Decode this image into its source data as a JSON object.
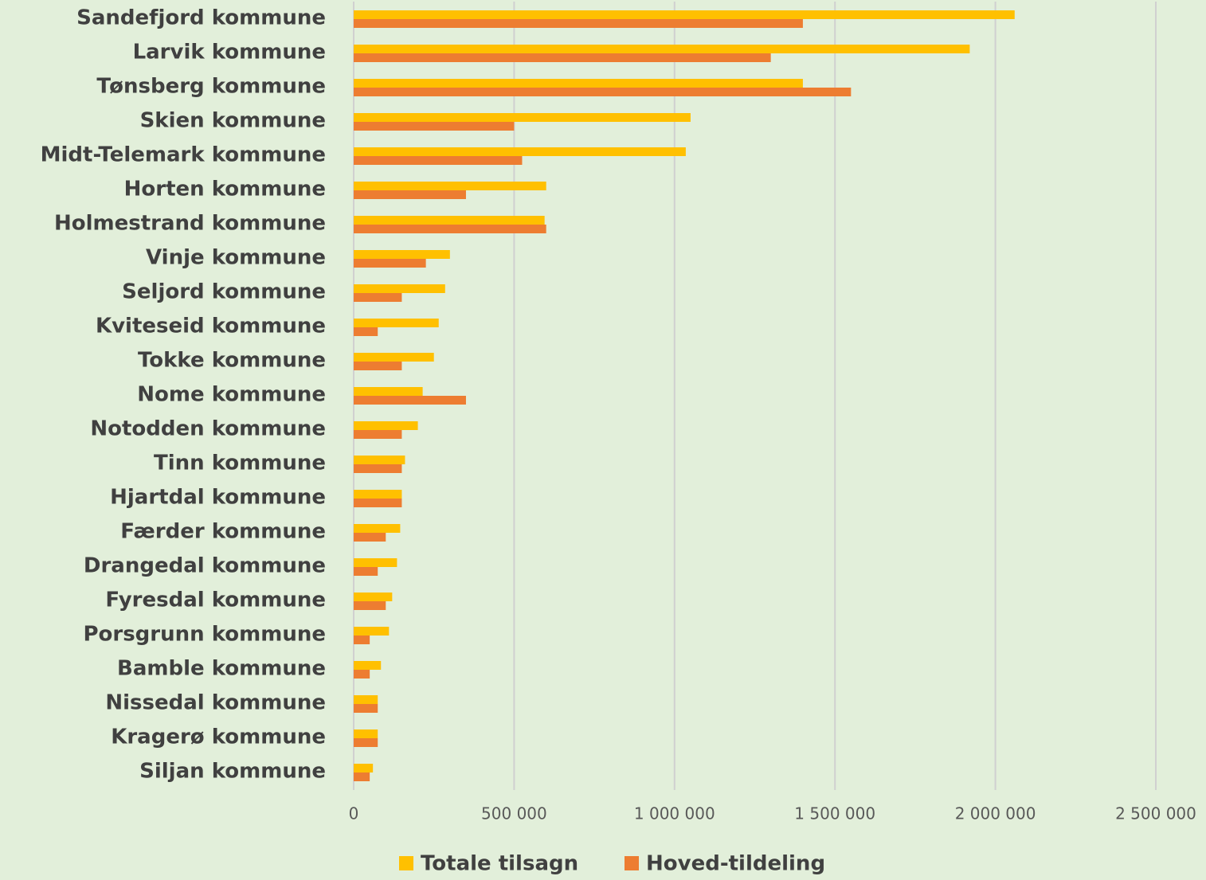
{
  "chart_data": {
    "type": "bar",
    "orientation": "horizontal",
    "categories": [
      "Sandefjord kommune",
      "Larvik kommune",
      "Tønsberg kommune",
      "Skien kommune",
      "Midt-Telemark kommune",
      "Horten kommune",
      "Holmestrand kommune",
      "Vinje kommune",
      "Seljord kommune",
      "Kviteseid kommune",
      "Tokke kommune",
      "Nome kommune",
      "Notodden kommune",
      "Tinn kommune",
      "Hjartdal kommune",
      "Færder kommune",
      "Drangedal kommune",
      "Fyresdal kommune",
      "Porsgrunn kommune",
      "Bamble kommune",
      "Nissedal kommune",
      "Kragerø kommune",
      "Siljan kommune"
    ],
    "series": [
      {
        "name": "Totale tilsagn",
        "color": "#ffc000",
        "values": [
          2060000,
          1920000,
          1400000,
          1050000,
          1035000,
          600000,
          595000,
          300000,
          285000,
          265000,
          250000,
          215000,
          200000,
          160000,
          150000,
          145000,
          135000,
          120000,
          110000,
          85000,
          75000,
          75000,
          60000
        ]
      },
      {
        "name": "Hoved-tildeling",
        "color": "#ed7d31",
        "values": [
          1400000,
          1300000,
          1550000,
          500000,
          525000,
          350000,
          600000,
          225000,
          150000,
          75000,
          150000,
          350000,
          150000,
          150000,
          150000,
          100000,
          75000,
          100000,
          50000,
          50000,
          75000,
          75000,
          50000
        ]
      }
    ],
    "xlim": [
      0,
      2500000
    ],
    "xticks": [
      0,
      {
        "value": 500000,
        "label": "500 000"
      },
      {
        "value": 1000000,
        "label": "1 000 000"
      },
      {
        "value": 1500000,
        "label": "1 500 000"
      },
      {
        "value": 2000000,
        "label": "2 000 000"
      },
      {
        "value": 2500000,
        "label": "2 500 000"
      }
    ],
    "grid": true,
    "legend": "bottom"
  }
}
